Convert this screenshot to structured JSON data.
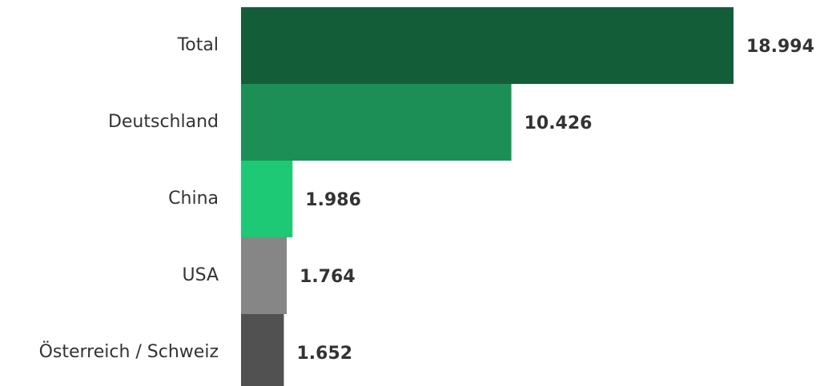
{
  "chart_data": {
    "type": "bar",
    "orientation": "horizontal",
    "categories": [
      "Total",
      "Deutschland",
      "China",
      "USA",
      "Österreich / Schweiz"
    ],
    "values": [
      18994,
      10426,
      1986,
      1764,
      1652
    ],
    "value_labels": [
      "18.994",
      "10.426",
      "1.986",
      "1.764",
      "1.652"
    ],
    "colors": [
      "#135e38",
      "#1b8f56",
      "#1dc975",
      "#868686",
      "#515151"
    ],
    "xlim": [
      0,
      18994
    ],
    "grid": false,
    "legend": "none"
  }
}
